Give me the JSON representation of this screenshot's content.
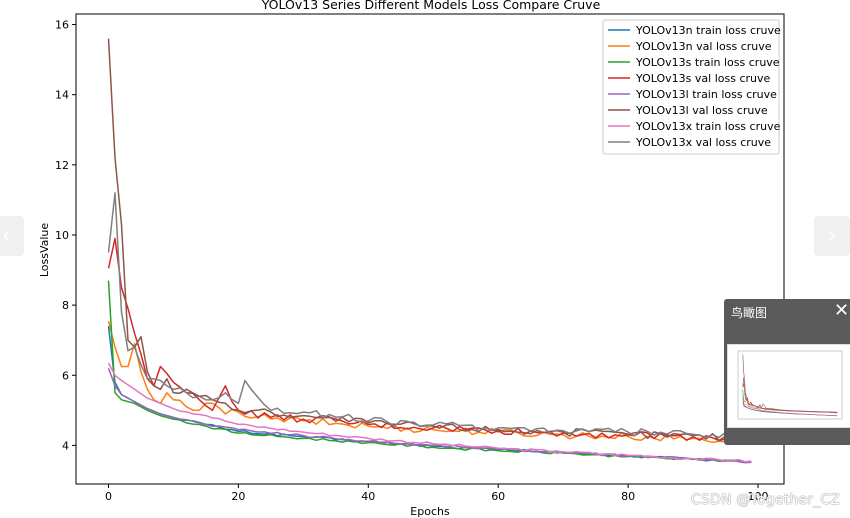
{
  "chart_data": {
    "type": "line",
    "title": "YOLOv13 Series Different Models Loss Compare Cruve",
    "xlabel": "Epochs",
    "ylabel": "LossValue",
    "xlim": [
      -5,
      104
    ],
    "ylim": [
      2.9,
      16.3
    ],
    "xticks": [
      0,
      20,
      40,
      60,
      80,
      100
    ],
    "yticks": [
      4,
      6,
      8,
      10,
      12,
      14,
      16
    ],
    "grid": false,
    "legend_position": "top-right",
    "series": [
      {
        "name": "YOLOv13n train loss cruve",
        "color": "#1f77b4",
        "x": [
          0,
          1,
          2,
          4,
          6,
          8,
          10,
          15,
          20,
          30,
          40,
          50,
          60,
          70,
          80,
          90,
          99
        ],
        "y": [
          7.4,
          5.8,
          5.45,
          5.25,
          5.05,
          4.9,
          4.8,
          4.6,
          4.4,
          4.25,
          4.1,
          3.98,
          3.88,
          3.8,
          3.7,
          3.6,
          3.55
        ]
      },
      {
        "name": "YOLOv13n val loss cruve",
        "color": "#ff7f0e",
        "x": [
          0,
          1,
          2,
          3,
          4,
          5,
          6,
          7,
          8,
          9,
          10,
          12,
          14,
          16,
          18,
          20,
          25,
          30,
          40,
          50,
          60,
          70,
          80,
          90,
          99
        ],
        "y": [
          7.55,
          6.8,
          6.25,
          6.25,
          6.9,
          6.1,
          5.6,
          5.3,
          5.2,
          5.5,
          5.3,
          5.1,
          5.0,
          5.2,
          4.9,
          4.95,
          4.75,
          4.7,
          4.55,
          4.45,
          4.38,
          4.3,
          4.25,
          4.2,
          4.1
        ]
      },
      {
        "name": "YOLOv13s train loss cruve",
        "color": "#2ca02c",
        "x": [
          0,
          1,
          2,
          4,
          6,
          8,
          10,
          15,
          20,
          30,
          40,
          50,
          60,
          70,
          80,
          90,
          99
        ],
        "y": [
          8.7,
          5.5,
          5.3,
          5.2,
          5.0,
          4.85,
          4.75,
          4.55,
          4.35,
          4.2,
          4.08,
          3.95,
          3.85,
          3.78,
          3.68,
          3.6,
          3.55
        ]
      },
      {
        "name": "YOLOv13s val loss cruve",
        "color": "#d62728",
        "x": [
          0,
          1,
          2,
          3,
          4,
          5,
          6,
          7,
          8,
          9,
          10,
          12,
          14,
          16,
          18,
          20,
          25,
          30,
          40,
          50,
          60,
          70,
          80,
          90,
          99
        ],
        "y": [
          9.05,
          9.9,
          8.5,
          7.9,
          7.2,
          6.6,
          5.9,
          5.7,
          6.25,
          6.05,
          5.8,
          5.5,
          5.3,
          5.0,
          5.7,
          5.0,
          4.8,
          4.75,
          4.6,
          4.5,
          4.42,
          4.35,
          4.3,
          4.25,
          4.15
        ]
      },
      {
        "name": "YOLOv13l train loss cruve",
        "color": "#9467bd",
        "x": [
          0,
          1,
          2,
          4,
          6,
          8,
          10,
          15,
          20,
          30,
          40,
          50,
          60,
          70,
          80,
          90,
          99
        ],
        "y": [
          6.2,
          5.7,
          5.45,
          5.25,
          5.05,
          4.9,
          4.8,
          4.6,
          4.45,
          4.28,
          4.12,
          4.0,
          3.9,
          3.8,
          3.7,
          3.62,
          3.52
        ]
      },
      {
        "name": "YOLOv13l val loss cruve",
        "color": "#8c564b",
        "x": [
          0,
          1,
          2,
          3,
          4,
          5,
          6,
          7,
          8,
          9,
          10,
          12,
          14,
          16,
          18,
          20,
          25,
          30,
          40,
          50,
          60,
          70,
          80,
          90,
          99
        ],
        "y": [
          15.6,
          12.2,
          10.3,
          7.0,
          6.8,
          7.1,
          6.1,
          5.7,
          5.6,
          5.9,
          5.5,
          5.6,
          5.4,
          5.3,
          5.2,
          5.0,
          4.95,
          4.85,
          4.65,
          4.55,
          4.45,
          4.38,
          4.32,
          4.28,
          4.2
        ]
      },
      {
        "name": "YOLOv13x train loss cruve",
        "color": "#e377c2",
        "x": [
          0,
          1,
          2,
          4,
          6,
          8,
          10,
          15,
          20,
          30,
          40,
          50,
          60,
          70,
          80,
          90,
          99
        ],
        "y": [
          6.35,
          6.0,
          5.85,
          5.6,
          5.35,
          5.2,
          5.05,
          4.85,
          4.6,
          4.38,
          4.2,
          4.05,
          3.92,
          3.82,
          3.72,
          3.62,
          3.55
        ]
      },
      {
        "name": "YOLOv13x val loss cruve",
        "color": "#7f7f7f",
        "x": [
          0,
          1,
          2,
          3,
          4,
          5,
          6,
          7,
          8,
          9,
          10,
          12,
          14,
          16,
          18,
          20,
          21,
          25,
          30,
          40,
          50,
          60,
          70,
          80,
          90,
          99
        ],
        "y": [
          9.5,
          11.2,
          7.8,
          6.7,
          6.8,
          6.3,
          5.9,
          5.9,
          5.85,
          5.7,
          5.6,
          5.5,
          5.4,
          5.3,
          5.5,
          5.2,
          5.85,
          5.0,
          4.95,
          4.7,
          4.58,
          4.5,
          4.42,
          4.38,
          4.32,
          4.25
        ]
      }
    ]
  },
  "nav": {
    "prev_icon": "‹",
    "next_icon": "›"
  },
  "minimap": {
    "title": "鸟瞰图",
    "close_icon": "✕"
  },
  "watermark": "CSDN @Together_CZ"
}
